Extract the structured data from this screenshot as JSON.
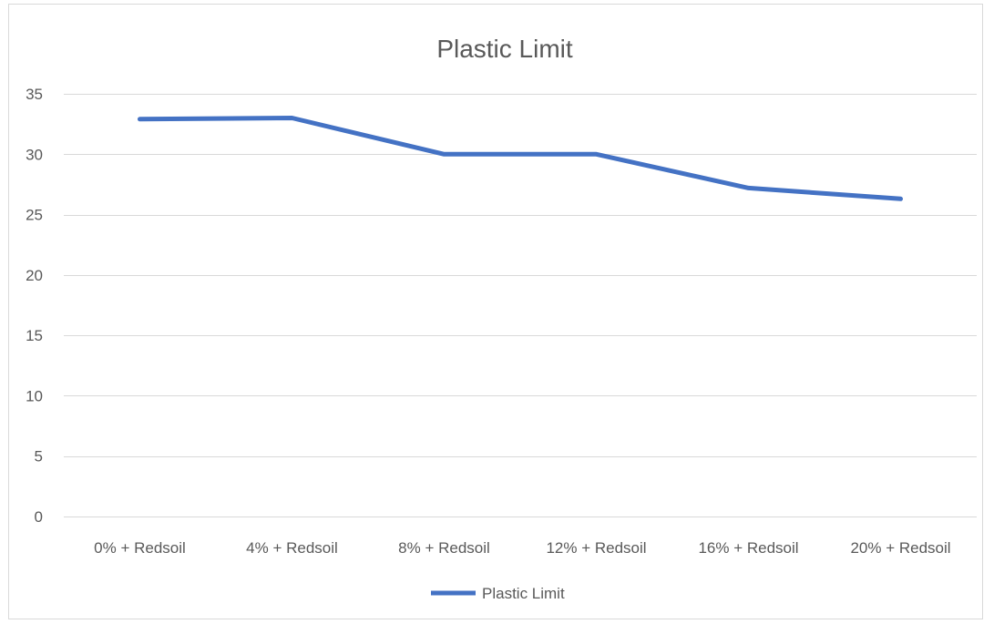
{
  "chart_data": {
    "type": "line",
    "title": "Plastic Limit",
    "xlabel": "",
    "ylabel": "",
    "categories": [
      "0% + Redsoil",
      "4% + Redsoil",
      "8% + Redsoil",
      "12% + Redsoil",
      "16% + Redsoil",
      "20% + Redsoil"
    ],
    "series": [
      {
        "name": "Plastic Limit",
        "values": [
          32.9,
          33.0,
          30.0,
          30.0,
          27.2,
          26.3
        ],
        "color": "#4472c4"
      }
    ],
    "ylim": [
      0,
      35
    ],
    "yticks": [
      0,
      5,
      10,
      15,
      20,
      25,
      30,
      35
    ],
    "grid": true,
    "legend": "bottom"
  }
}
